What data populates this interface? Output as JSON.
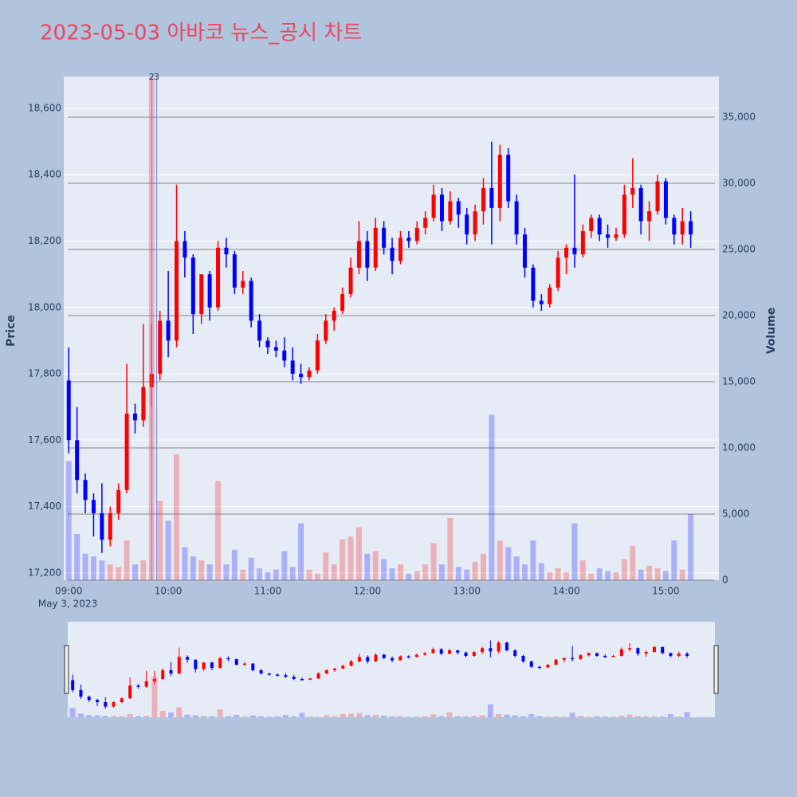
{
  "chart_data": {
    "type": "candlestick",
    "title": "2023-05-03 아바코 뉴스_공시 차트",
    "y_label": "Price",
    "y2_label": "Volume",
    "x_date_label": "May 3, 2023",
    "increasing_color": "#ff0000",
    "decreasing_color": "#0000ff",
    "x": [
      "09:00",
      "09:05",
      "09:10",
      "09:15",
      "09:20",
      "09:25",
      "09:30",
      "09:35",
      "09:40",
      "09:45",
      "09:50",
      "09:55",
      "10:00",
      "10:05",
      "10:10",
      "10:15",
      "10:20",
      "10:25",
      "10:30",
      "10:35",
      "10:40",
      "10:45",
      "10:50",
      "10:55",
      "11:00",
      "11:05",
      "11:10",
      "11:15",
      "11:20",
      "11:25",
      "11:30",
      "11:35",
      "11:40",
      "11:45",
      "11:50",
      "11:55",
      "12:00",
      "12:05",
      "12:10",
      "12:15",
      "12:20",
      "12:25",
      "12:30",
      "12:35",
      "12:40",
      "12:45",
      "12:50",
      "12:55",
      "13:00",
      "13:05",
      "13:10",
      "13:15",
      "13:20",
      "13:25",
      "13:30",
      "13:35",
      "13:40",
      "13:45",
      "13:50",
      "13:55",
      "14:00",
      "14:05",
      "14:10",
      "14:15",
      "14:20",
      "14:25",
      "14:30",
      "14:35",
      "14:40",
      "14:45",
      "14:50",
      "14:55",
      "15:00",
      "15:05",
      "15:10",
      "15:15"
    ],
    "open": [
      17780,
      17600,
      17480,
      17420,
      17380,
      17300,
      17380,
      17450,
      17680,
      17660,
      17760,
      17800,
      17960,
      17900,
      18200,
      18150,
      17980,
      18100,
      18000,
      18180,
      18160,
      18060,
      18080,
      17960,
      17900,
      17880,
      17870,
      17840,
      17800,
      17790,
      17810,
      17900,
      17960,
      17990,
      18040,
      18120,
      18200,
      18120,
      18240,
      18180,
      18140,
      18210,
      18200,
      18240,
      18270,
      18340,
      18260,
      18320,
      18280,
      18220,
      18290,
      18360,
      18300,
      18460,
      18320,
      18220,
      18120,
      18020,
      18010,
      18060,
      18150,
      18180,
      18160,
      18230,
      18270,
      18220,
      18210,
      18220,
      18340,
      18360,
      18260,
      18290,
      18380,
      18270,
      18220,
      18260
    ],
    "high": [
      17880,
      17700,
      17500,
      17440,
      17470,
      17400,
      17470,
      17830,
      17710,
      17950,
      17950,
      17990,
      18110,
      18370,
      18230,
      18160,
      18100,
      18110,
      18200,
      18210,
      18170,
      18110,
      18090,
      17980,
      17910,
      17900,
      17910,
      17880,
      17830,
      17820,
      17920,
      17980,
      18000,
      18060,
      18150,
      18260,
      18230,
      18270,
      18260,
      18210,
      18230,
      18230,
      18260,
      18290,
      18370,
      18360,
      18350,
      18330,
      18300,
      18310,
      18390,
      18500,
      18490,
      18480,
      18340,
      18240,
      18130,
      18040,
      18070,
      18170,
      18190,
      18400,
      18250,
      18280,
      18280,
      18250,
      18240,
      18370,
      18450,
      18370,
      18320,
      18400,
      18390,
      18280,
      18300,
      18290
    ],
    "low": [
      17560,
      17440,
      17380,
      17310,
      17260,
      17280,
      17360,
      17440,
      17620,
      17640,
      17700,
      17780,
      17850,
      17880,
      18090,
      17920,
      17950,
      17960,
      17990,
      18120,
      18040,
      18040,
      17940,
      17880,
      17860,
      17850,
      17820,
      17780,
      17770,
      17780,
      17800,
      17890,
      17930,
      17980,
      18030,
      18100,
      18080,
      18110,
      18160,
      18100,
      18130,
      18180,
      18190,
      18220,
      18260,
      18230,
      18250,
      18240,
      18190,
      18200,
      18250,
      18190,
      18260,
      18300,
      18190,
      18090,
      18000,
      17990,
      18000,
      18050,
      18100,
      18120,
      18150,
      18210,
      18200,
      18180,
      18200,
      18210,
      18300,
      18220,
      18200,
      18280,
      18250,
      18190,
      18190,
      18180
    ],
    "close": [
      17600,
      17480,
      17420,
      17380,
      17300,
      17380,
      17450,
      17680,
      17660,
      17760,
      17800,
      17960,
      17900,
      18200,
      18150,
      17980,
      18100,
      18000,
      18180,
      18160,
      18060,
      18080,
      17960,
      17900,
      17880,
      17870,
      17840,
      17800,
      17790,
      17810,
      17900,
      17960,
      17990,
      18040,
      18120,
      18200,
      18120,
      18240,
      18180,
      18140,
      18210,
      18200,
      18240,
      18270,
      18340,
      18260,
      18320,
      18280,
      18220,
      18290,
      18360,
      18300,
      18460,
      18320,
      18220,
      18120,
      18020,
      18010,
      18060,
      18150,
      18180,
      18160,
      18230,
      18270,
      18220,
      18210,
      18220,
      18340,
      18360,
      18260,
      18290,
      18380,
      18270,
      18220,
      18260,
      18220
    ],
    "volume": [
      9000,
      3500,
      2000,
      1800,
      1500,
      1200,
      1000,
      3000,
      1200,
      1500,
      40000,
      6000,
      4500,
      9500,
      2500,
      1800,
      1500,
      1200,
      7500,
      1200,
      2300,
      800,
      1700,
      900,
      600,
      800,
      2200,
      1000,
      4300,
      800,
      500,
      2100,
      1200,
      3100,
      3300,
      4000,
      2000,
      2200,
      1600,
      900,
      1200,
      500,
      700,
      1200,
      2800,
      1200,
      4700,
      1000,
      800,
      1400,
      2000,
      12500,
      3000,
      2500,
      1800,
      1200,
      3000,
      1300,
      600,
      900,
      600,
      4300,
      1500,
      500,
      900,
      700,
      600,
      1600,
      2600,
      800,
      1100,
      900,
      700,
      3000,
      800,
      5000
    ],
    "annotations": [
      {
        "x": "09:50",
        "text": "2"
      },
      {
        "x": "09:53",
        "text": "3"
      }
    ],
    "xlim": [
      "08:57",
      "15:32"
    ],
    "xticks": [
      "09:00",
      "10:00",
      "11:00",
      "12:00",
      "13:00",
      "14:00",
      "15:00"
    ],
    "ylim": [
      17178,
      18696
    ],
    "yticks": [
      {
        "value": 17200,
        "label": "17,200"
      },
      {
        "value": 17400,
        "label": "17,400"
      },
      {
        "value": 17600,
        "label": "17,600"
      },
      {
        "value": 17800,
        "label": "17,800"
      },
      {
        "value": 18000,
        "label": "18,000"
      },
      {
        "value": 18200,
        "label": "18,200"
      },
      {
        "value": 18400,
        "label": "18,400"
      },
      {
        "value": 18600,
        "label": "18,600"
      }
    ],
    "y2lim": [
      0,
      38070
    ],
    "y2ticks": [
      0,
      {
        "value": 5000,
        "label": "5,000"
      },
      {
        "value": 10000,
        "label": "10,000"
      },
      {
        "value": 15000,
        "label": "15,000"
      },
      {
        "value": 20000,
        "label": "20,000"
      },
      {
        "value": 25000,
        "label": "25,000"
      },
      {
        "value": 30000,
        "label": "30,000"
      },
      {
        "value": 35000,
        "label": "35,000"
      }
    ],
    "grid": true,
    "range_slider": true
  }
}
